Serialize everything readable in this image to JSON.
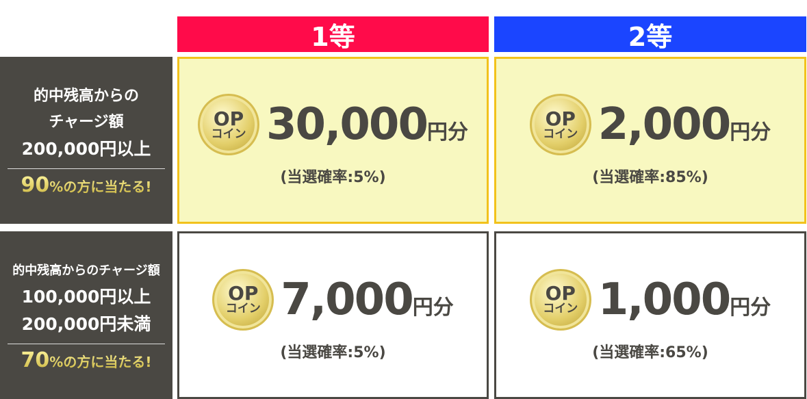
{
  "headers": [
    "1等",
    "2等"
  ],
  "rows": [
    {
      "lines": [
        "的中残高からの",
        "チャージ額",
        "200,000円以上"
      ],
      "pct_num": "90",
      "pct_text": "%の方に当たる!",
      "prizes": [
        {
          "coin_top": "OP",
          "coin_bottom": "コイン",
          "amount": "30,000",
          "unit": "円分",
          "prob": "(当選確率:5%)"
        },
        {
          "coin_top": "OP",
          "coin_bottom": "コイン",
          "amount": "2,000",
          "unit": "円分",
          "prob": "(当選確率:85%)"
        }
      ]
    },
    {
      "lines": [
        "的中残高からのチャージ額",
        "100,000円以上",
        "200,000円未満"
      ],
      "pct_num": "70",
      "pct_text": "%の方に当たる!",
      "prizes": [
        {
          "coin_top": "OP",
          "coin_bottom": "コイン",
          "amount": "7,000",
          "unit": "円分",
          "prob": "(当選確率:5%)"
        },
        {
          "coin_top": "OP",
          "coin_bottom": "コイン",
          "amount": "1,000",
          "unit": "円分",
          "prob": "(当選確率:65%)"
        }
      ]
    }
  ],
  "colors": {
    "first": "#ff0b4a",
    "second": "#1b45ff",
    "dark": "#4a4843",
    "highlight": "#f8f8c0",
    "gold": "#f2c21c"
  }
}
